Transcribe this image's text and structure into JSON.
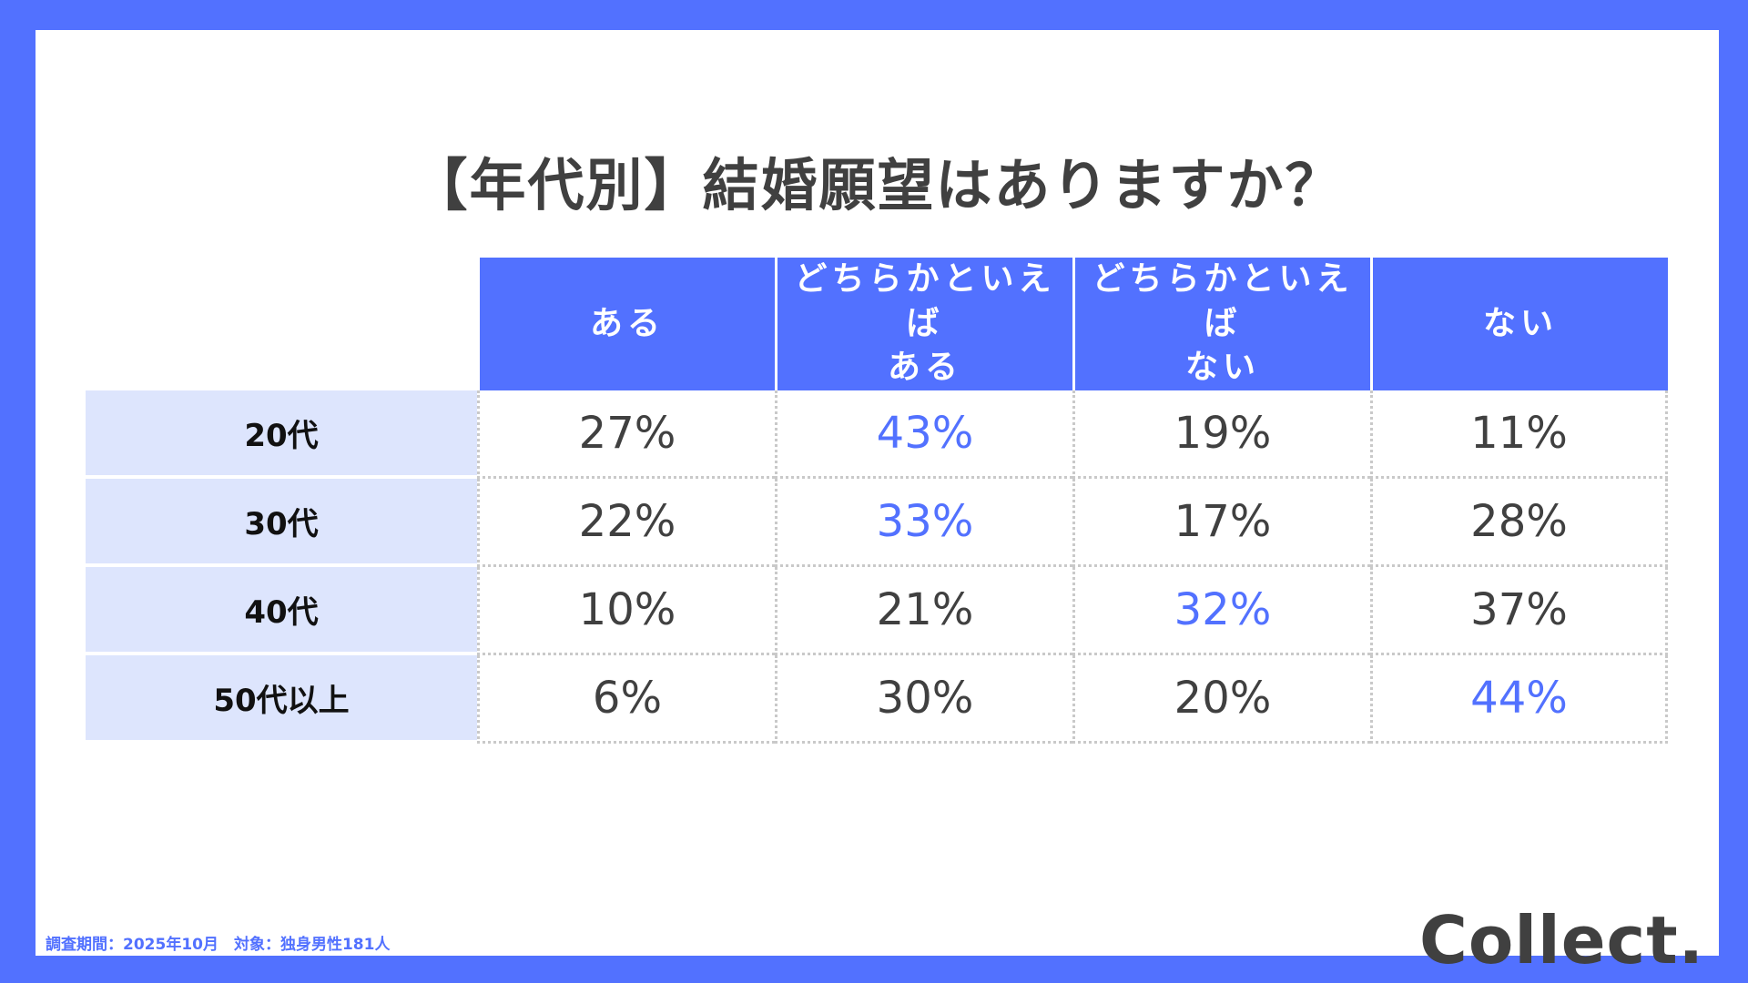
{
  "title": "【年代別】結婚願望はありますか？",
  "footnote": "調査期間：2025年10月　対象：独身男性181人",
  "brand": "Collect.",
  "colors": {
    "accent": "#5271ff",
    "row_label_bg": "#dde5fd",
    "text": "#404040"
  },
  "chart_data": {
    "type": "table",
    "title": "【年代別】結婚願望はありますか？",
    "columns": [
      {
        "line1": "ある",
        "line2": ""
      },
      {
        "line1": "どちらかといえば",
        "line2": "ある"
      },
      {
        "line1": "どちらかといえば",
        "line2": "ない"
      },
      {
        "line1": "ない",
        "line2": ""
      }
    ],
    "rows": [
      {
        "label": "20代",
        "values": [
          "27%",
          "43%",
          "19%",
          "11%"
        ],
        "highlight": 1
      },
      {
        "label": "30代",
        "values": [
          "22%",
          "33%",
          "17%",
          "28%"
        ],
        "highlight": 1
      },
      {
        "label": "40代",
        "values": [
          "10%",
          "21%",
          "32%",
          "37%"
        ],
        "highlight": 2
      },
      {
        "label": "50代以上",
        "values": [
          "6%",
          "30%",
          "20%",
          "44%"
        ],
        "highlight": 3
      }
    ]
  }
}
